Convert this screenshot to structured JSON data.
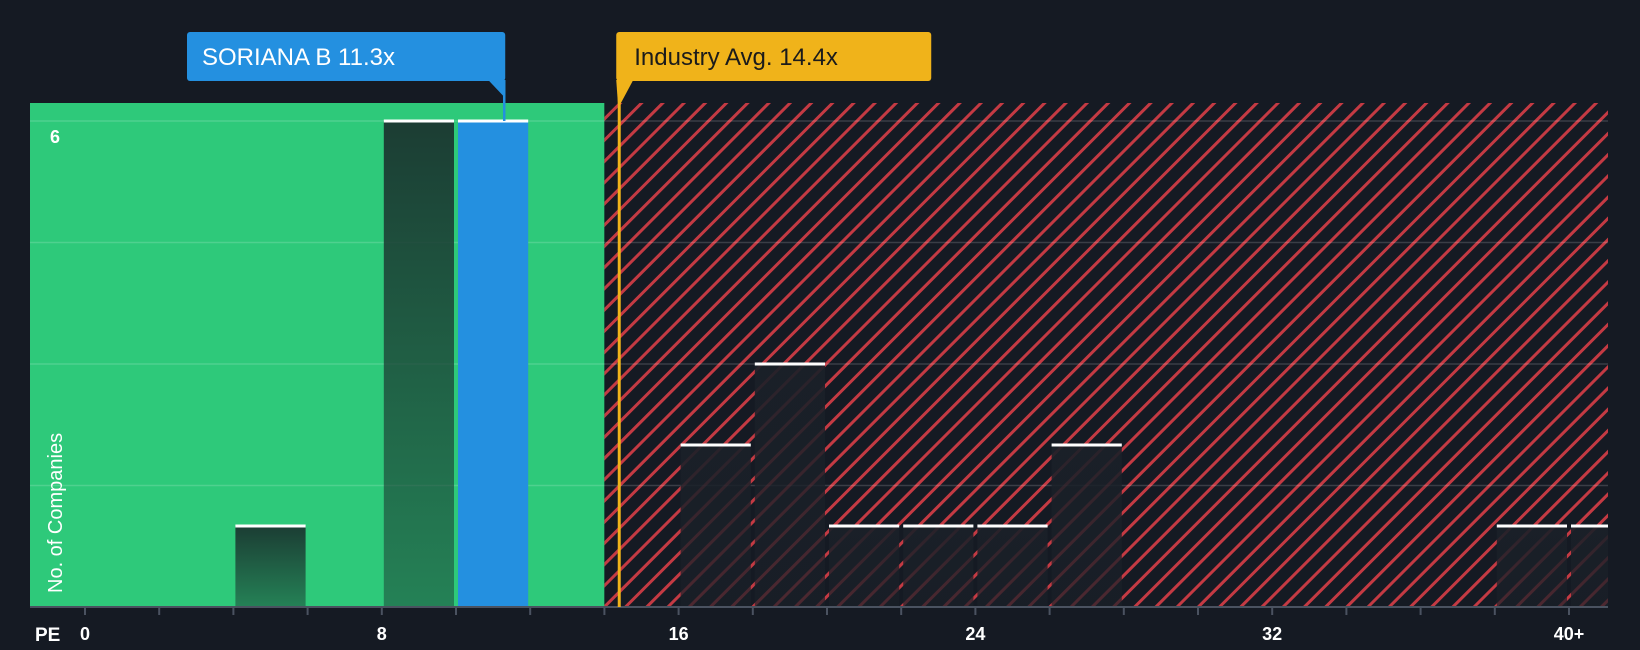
{
  "chart_data": {
    "type": "bar",
    "subject": {
      "label": "SORIANA B 11.3x",
      "value": 11.3,
      "color": "#2490e0"
    },
    "industry_avg": {
      "label": "Industry Avg. 14.4x",
      "value": 14.4,
      "color": "#f0b31a"
    },
    "x": {
      "label": "PE",
      "range": [
        0,
        40
      ],
      "tick_values": [
        0,
        8,
        16,
        24,
        32,
        40
      ],
      "tick_labels": [
        "0",
        "8",
        "16",
        "24",
        "32",
        "40+"
      ]
    },
    "y": {
      "label": "No. of Companies",
      "range": [
        0,
        6
      ],
      "tick_values": [
        6
      ],
      "tick_labels": [
        "6"
      ],
      "gridlines": [
        1.5,
        3,
        4.5,
        6
      ]
    },
    "bin_width": 2,
    "bars": [
      {
        "start": 4,
        "end": 6,
        "count": 1,
        "zone": "undervalued"
      },
      {
        "start": 8,
        "end": 10,
        "count": 6,
        "zone": "undervalued"
      },
      {
        "start": 10,
        "end": 12,
        "count": 6,
        "zone": "subject"
      },
      {
        "start": 16,
        "end": 18,
        "count": 2,
        "zone": "overvalued"
      },
      {
        "start": 18,
        "end": 20,
        "count": 3,
        "zone": "overvalued"
      },
      {
        "start": 20,
        "end": 22,
        "count": 1,
        "zone": "overvalued"
      },
      {
        "start": 22,
        "end": 24,
        "count": 1,
        "zone": "overvalued"
      },
      {
        "start": 24,
        "end": 26,
        "count": 1,
        "zone": "overvalued"
      },
      {
        "start": 26,
        "end": 28,
        "count": 2,
        "zone": "overvalued"
      },
      {
        "start": 38,
        "end": 40,
        "count": 1,
        "zone": "overvalued"
      },
      {
        "start": 40,
        "end": 42,
        "count": 1,
        "zone": "overvalued"
      }
    ],
    "zones": {
      "green_until": 14.0,
      "green_color": "#2ec97a",
      "red_color": "#e8434b",
      "background": "#151a23"
    },
    "grid": true
  }
}
